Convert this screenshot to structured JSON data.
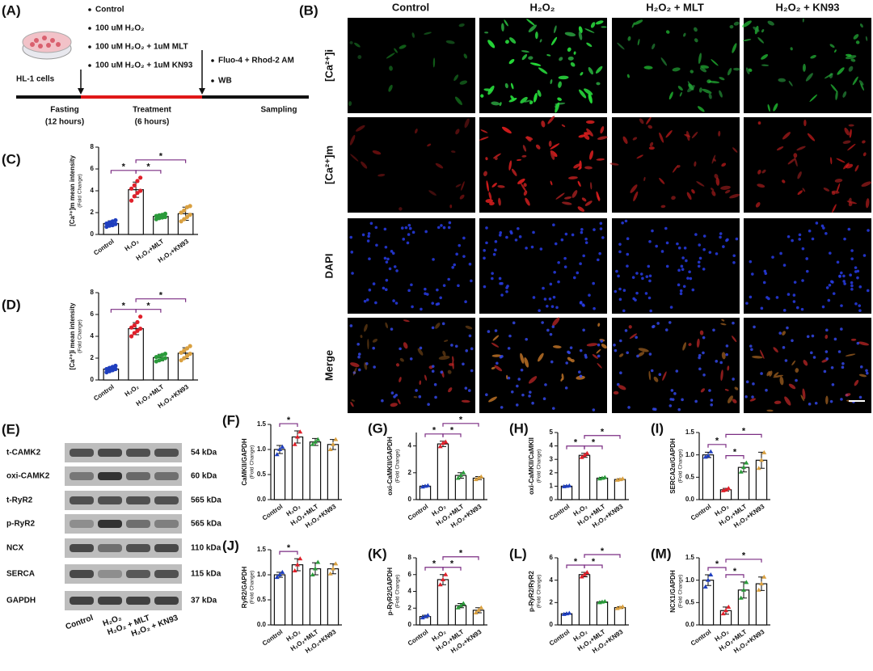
{
  "panel_a": {
    "label": "(A)",
    "conditions": [
      "Control",
      "100 uM H₂O₂",
      "100 uM H₂O₂ + 1uM MLT",
      "100 uM H₂O₂ + 1uM KN93"
    ],
    "cells": "HL-1 cells",
    "assays": [
      "Fluo-4 + Rhod-2 AM",
      "WB"
    ],
    "phases": [
      {
        "name": "Fasting",
        "duration": "(12 hours)"
      },
      {
        "name": "Treatment",
        "duration": "(6 hours)"
      },
      {
        "name": "Sampling"
      }
    ]
  },
  "panel_b": {
    "label": "(B)",
    "columns": [
      "Control",
      "H₂O₂",
      "H₂O₂ + MLT",
      "H₂O₂ + KN93"
    ],
    "rows": [
      {
        "name": "[Ca²⁺]i",
        "color": "#1aa34a"
      },
      {
        "name": "[Ca²⁺]m",
        "color": "#e02020"
      },
      {
        "name": "DAPI",
        "color": "#2424d8"
      },
      {
        "name": "Merge",
        "color": "#000000"
      }
    ]
  },
  "panel_e": {
    "label": "(E)",
    "proteins": [
      {
        "name": "t-CAMK2",
        "size": "54 kDa"
      },
      {
        "name": "oxi-CAMK2",
        "size": "60 kDa"
      },
      {
        "name": "t-RyR2",
        "size": "565 kDa"
      },
      {
        "name": "p-RyR2",
        "size": "565 kDa"
      },
      {
        "name": "NCX",
        "size": "110 kDa"
      },
      {
        "name": "SERCA",
        "size": "115 kDa"
      },
      {
        "name": "GAPDH",
        "size": "37 kDa"
      }
    ],
    "lanes": [
      "Control",
      "H₂O₂",
      "H₂O₂ + MLT",
      "H₂O₂ + KN93"
    ]
  },
  "chart_data": [
    {
      "type": "bar",
      "label": "(C)",
      "ylabel": "[Ca²⁺]m mean intensity",
      "ylabel_sub": "(Fold Change)",
      "categories": [
        "Control",
        "H₂O₂",
        "H₂O₂+MLT",
        "H₂O₂+KN93"
      ],
      "colors": [
        "#1f3fbf",
        "#e0202a",
        "#2a9a3a",
        "#d9a040"
      ],
      "bracket_color": "#7b2d83",
      "values": [
        1.0,
        4.1,
        1.65,
        1.9
      ],
      "errors": [
        0.25,
        0.7,
        0.2,
        0.6
      ],
      "points": [
        [
          0.7,
          0.8,
          0.85,
          0.95,
          1.0,
          1.1,
          1.2,
          1.3
        ],
        [
          3.1,
          3.5,
          3.8,
          4.0,
          4.2,
          4.5,
          4.9,
          5.2
        ],
        [
          1.4,
          1.5,
          1.55,
          1.6,
          1.7,
          1.75,
          1.8,
          1.9
        ],
        [
          1.2,
          1.4,
          1.6,
          1.8,
          2.0,
          2.2,
          2.5,
          2.6
        ]
      ],
      "ylim": [
        0,
        8
      ],
      "yticks": [
        0,
        2,
        4,
        6,
        8
      ],
      "annotations": [
        "*",
        "*",
        "*"
      ]
    },
    {
      "type": "bar",
      "label": "(D)",
      "ylabel": "[Ca²⁺]i mean intensity",
      "ylabel_sub": "(Fold Change)",
      "categories": [
        "Control",
        "H₂O₂",
        "H₂O₂+MLT",
        "H₂O₂+KN93"
      ],
      "colors": [
        "#1f3fbf",
        "#e0202a",
        "#2a9a3a",
        "#d9a040"
      ],
      "bracket_color": "#7b2d83",
      "values": [
        1.0,
        4.7,
        2.05,
        2.45
      ],
      "errors": [
        0.2,
        0.55,
        0.3,
        0.5
      ],
      "points": [
        [
          0.7,
          0.8,
          0.9,
          1.0,
          1.0,
          1.1,
          1.2,
          1.3
        ],
        [
          4.0,
          4.3,
          4.5,
          4.7,
          4.8,
          5.0,
          5.3,
          5.8
        ],
        [
          1.7,
          1.8,
          1.9,
          2.0,
          2.1,
          2.2,
          2.3,
          2.4
        ],
        [
          1.8,
          2.0,
          2.2,
          2.4,
          2.5,
          2.7,
          2.9,
          3.1
        ]
      ],
      "ylim": [
        0,
        8
      ],
      "yticks": [
        0,
        2,
        4,
        6,
        8
      ],
      "annotations": [
        "*",
        "*",
        "*"
      ]
    },
    {
      "type": "bar",
      "label": "(F)",
      "ylabel": "CaMKII/GAPDH",
      "ylabel_sub": "(Fold Change)",
      "categories": [
        "Control",
        "H₂O₂",
        "H₂O₂+MLT",
        "H₂O₂+KN93"
      ],
      "colors": [
        "#1f3fbf",
        "#e0202a",
        "#2a9a3a",
        "#d9a040"
      ],
      "bracket_color": "#7b2d83",
      "values": [
        1.0,
        1.25,
        1.15,
        1.1
      ],
      "errors": [
        0.08,
        0.12,
        0.07,
        0.1
      ],
      "points": [
        [
          0.9,
          1.0,
          1.05
        ],
        [
          1.1,
          1.25,
          1.35
        ],
        [
          1.1,
          1.15,
          1.2
        ],
        [
          1.0,
          1.1,
          1.2
        ]
      ],
      "ylim": [
        0,
        1.5
      ],
      "yticks": [
        {
          "value": 0,
          "label": "0.0"
        },
        0.5,
        {
          "value": 1,
          "label": "1.0"
        },
        1.5
      ],
      "annotations": [
        "*"
      ]
    },
    {
      "type": "bar",
      "label": "(G)",
      "ylabel": "oxi-CaMKII/GAPDH",
      "ylabel_sub": "(Fold Change)",
      "categories": [
        "Control",
        "H₂O₂",
        "H₂O₂+MLT",
        "H₂O₂+KN93"
      ],
      "colors": [
        "#1f3fbf",
        "#e0202a",
        "#2a9a3a",
        "#d9a040"
      ],
      "bracket_color": "#7b2d83",
      "values": [
        1.0,
        4.15,
        1.8,
        1.6
      ],
      "errors": [
        0.05,
        0.2,
        0.2,
        0.12
      ],
      "points": [
        [
          0.95,
          1.0,
          1.05
        ],
        [
          3.95,
          4.2,
          4.3
        ],
        [
          1.6,
          1.8,
          2.0
        ],
        [
          1.5,
          1.6,
          1.7
        ]
      ],
      "ylim": [
        0,
        5
      ],
      "yticks": [
        0,
        2,
        4
      ],
      "annotations": [
        "*",
        "*",
        "*"
      ]
    },
    {
      "type": "bar",
      "label": "(H)",
      "ylabel": "oxi-CaMKII/CaMKII",
      "ylabel_sub": "(Fold Change)",
      "categories": [
        "Control",
        "H₂O₂",
        "H₂O₂+MLT",
        "H₂O₂+KN93"
      ],
      "colors": [
        "#1f3fbf",
        "#e0202a",
        "#2a9a3a",
        "#d9a040"
      ],
      "bracket_color": "#7b2d83",
      "values": [
        1.0,
        3.3,
        1.6,
        1.5
      ],
      "errors": [
        0.04,
        0.15,
        0.06,
        0.05
      ],
      "points": [
        [
          0.97,
          1.0,
          1.03
        ],
        [
          3.15,
          3.3,
          3.45
        ],
        [
          1.55,
          1.6,
          1.66
        ],
        [
          1.45,
          1.5,
          1.55
        ]
      ],
      "ylim": [
        0,
        5
      ],
      "yticks": [
        0,
        1,
        2,
        3,
        4,
        5
      ],
      "annotations": [
        "*",
        "*",
        "*"
      ]
    },
    {
      "type": "bar",
      "label": "(I)",
      "ylabel": "SERCA2α/GAPDH",
      "ylabel_sub": "(Fold Change)",
      "categories": [
        "Control",
        "H₂O₂",
        "H₂O₂+MLT",
        "H₂O₂+KN93"
      ],
      "colors": [
        "#1f3fbf",
        "#e0202a",
        "#2a9a3a",
        "#d9a040"
      ],
      "bracket_color": "#7b2d83",
      "values": [
        1.0,
        0.22,
        0.72,
        0.88
      ],
      "errors": [
        0.06,
        0.03,
        0.1,
        0.18
      ],
      "points": [
        [
          0.95,
          0.98,
          1.07
        ],
        [
          0.2,
          0.22,
          0.25
        ],
        [
          0.62,
          0.72,
          0.82
        ],
        [
          0.7,
          0.88,
          1.05
        ]
      ],
      "ylim": [
        0,
        1.5
      ],
      "yticks": [
        {
          "value": 0,
          "label": "0.0"
        },
        0.5,
        {
          "value": 1,
          "label": "1.0"
        },
        1.5
      ],
      "annotations": [
        "*",
        "*",
        "*"
      ]
    },
    {
      "type": "bar",
      "label": "(J)",
      "ylabel": "RyR2/GAPDH",
      "ylabel_sub": "(Fold Change)",
      "categories": [
        "Control",
        "H₂O₂",
        "H₂O₂+MLT",
        "H₂O₂+KN93"
      ],
      "colors": [
        "#1f3fbf",
        "#e0202a",
        "#2a9a3a",
        "#d9a040"
      ],
      "bracket_color": "#7b2d83",
      "values": [
        1.0,
        1.2,
        1.12,
        1.12
      ],
      "errors": [
        0.05,
        0.12,
        0.12,
        0.1
      ],
      "points": [
        [
          0.95,
          1.0,
          1.05
        ],
        [
          1.08,
          1.2,
          1.32
        ],
        [
          1.0,
          1.12,
          1.25
        ],
        [
          1.02,
          1.12,
          1.22
        ]
      ],
      "ylim": [
        0,
        1.5
      ],
      "yticks": [
        {
          "value": 0,
          "label": "0.0"
        },
        0.5,
        {
          "value": 1,
          "label": "1.0"
        },
        1.5
      ],
      "annotations": [
        "*"
      ]
    },
    {
      "type": "bar",
      "label": "(K)",
      "ylabel": "p-RyR2/GAPDH",
      "ylabel_sub": "(Fold Change)",
      "categories": [
        "Control",
        "H₂O₂",
        "H₂O₂+MLT",
        "H₂O₂+KN93"
      ],
      "colors": [
        "#1f3fbf",
        "#e0202a",
        "#2a9a3a",
        "#d9a040"
      ],
      "bracket_color": "#7b2d83",
      "values": [
        1.0,
        5.4,
        2.3,
        1.75
      ],
      "errors": [
        0.15,
        0.6,
        0.25,
        0.3
      ],
      "points": [
        [
          0.85,
          1.0,
          1.15
        ],
        [
          4.8,
          5.4,
          6.0
        ],
        [
          2.05,
          2.3,
          2.55
        ],
        [
          1.45,
          1.75,
          2.05
        ]
      ],
      "ylim": [
        0,
        8
      ],
      "yticks": [
        0,
        2,
        4,
        6,
        8
      ],
      "annotations": [
        "*",
        "*",
        "*"
      ]
    },
    {
      "type": "bar",
      "label": "(L)",
      "ylabel": "p-RyR2/RyR2",
      "ylabel_sub": "(Fold Change)",
      "categories": [
        "Control",
        "H₂O₂",
        "H₂O₂+MLT",
        "H₂O₂+KN93"
      ],
      "colors": [
        "#1f3fbf",
        "#e0202a",
        "#2a9a3a",
        "#d9a040"
      ],
      "bracket_color": "#7b2d83",
      "values": [
        1.0,
        4.5,
        2.05,
        1.55
      ],
      "errors": [
        0.05,
        0.2,
        0.05,
        0.08
      ],
      "points": [
        [
          0.95,
          1.0,
          1.05
        ],
        [
          4.3,
          4.5,
          4.7
        ],
        [
          2.0,
          2.05,
          2.1
        ],
        [
          1.47,
          1.55,
          1.63
        ]
      ],
      "ylim": [
        0,
        6
      ],
      "yticks": [
        0,
        2,
        4,
        6
      ],
      "annotations": [
        "*",
        "*",
        "*"
      ]
    },
    {
      "type": "bar",
      "label": "(M)",
      "ylabel": "NCX1/GAPDH",
      "ylabel_sub": "(Fold Change)",
      "categories": [
        "Control",
        "H₂O₂",
        "H₂O₂+MLT",
        "H₂O₂+KN93"
      ],
      "colors": [
        "#1f3fbf",
        "#e0202a",
        "#2a9a3a",
        "#d9a040"
      ],
      "bracket_color": "#7b2d83",
      "values": [
        1.0,
        0.32,
        0.78,
        0.92
      ],
      "errors": [
        0.12,
        0.08,
        0.18,
        0.15
      ],
      "points": [
        [
          0.85,
          1.0,
          1.12
        ],
        [
          0.25,
          0.32,
          0.4
        ],
        [
          0.6,
          0.78,
          0.95
        ],
        [
          0.78,
          0.92,
          1.07
        ]
      ],
      "ylim": [
        0,
        1.5
      ],
      "yticks": [
        {
          "value": 0,
          "label": "0.0"
        },
        0.5,
        {
          "value": 1,
          "label": "1.0"
        },
        1.5
      ],
      "annotations": [
        "*",
        "*",
        "*"
      ]
    }
  ]
}
